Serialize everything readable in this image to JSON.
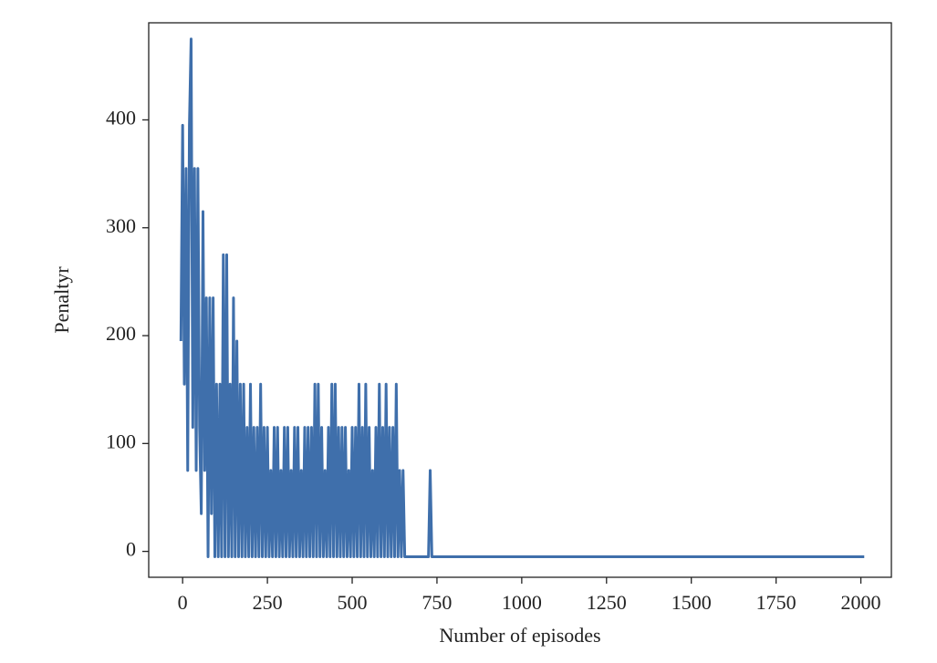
{
  "chart_data": {
    "type": "line",
    "x_label": "Number of episodes",
    "y_label": "Penaltyr",
    "xlim": [
      -100,
      2090
    ],
    "ylim": [
      -24,
      490
    ],
    "xticks": [
      0,
      250,
      500,
      750,
      1000,
      1250,
      1500,
      1750,
      2000
    ],
    "yticks": [
      0,
      100,
      200,
      300,
      400
    ],
    "grid": false,
    "series": [
      {
        "color": "#3f6fab",
        "x": [
          -5,
          0,
          5,
          10,
          15,
          20,
          25,
          30,
          35,
          40,
          45,
          50,
          55,
          60,
          65,
          70,
          75,
          80,
          85,
          90,
          95,
          100,
          105,
          110,
          115,
          120,
          125,
          130,
          135,
          140,
          145,
          150,
          155,
          160,
          165,
          170,
          175,
          180,
          185,
          190,
          195,
          200,
          205,
          210,
          215,
          220,
          225,
          230,
          235,
          240,
          245,
          250,
          255,
          260,
          265,
          270,
          275,
          280,
          285,
          290,
          295,
          300,
          305,
          310,
          315,
          320,
          325,
          330,
          335,
          340,
          345,
          350,
          355,
          360,
          365,
          370,
          375,
          380,
          385,
          390,
          395,
          400,
          405,
          410,
          415,
          420,
          425,
          430,
          435,
          440,
          445,
          450,
          455,
          460,
          465,
          470,
          475,
          480,
          485,
          490,
          495,
          500,
          505,
          510,
          515,
          520,
          525,
          530,
          535,
          540,
          545,
          550,
          555,
          560,
          565,
          570,
          575,
          580,
          585,
          590,
          595,
          600,
          605,
          610,
          615,
          620,
          625,
          630,
          635,
          640,
          645,
          650,
          655,
          725,
          730,
          735,
          2010
        ],
        "values": [
          195,
          395,
          155,
          355,
          75,
          395,
          475,
          115,
          355,
          75,
          355,
          115,
          35,
          315,
          75,
          235,
          -5,
          235,
          35,
          235,
          -5,
          155,
          -5,
          155,
          -5,
          275,
          -5,
          275,
          -5,
          155,
          -5,
          235,
          -5,
          195,
          -5,
          155,
          -5,
          155,
          -5,
          115,
          -5,
          155,
          -5,
          115,
          -5,
          115,
          -5,
          155,
          -5,
          115,
          -5,
          115,
          -5,
          75,
          -5,
          115,
          -5,
          115,
          -5,
          75,
          -5,
          115,
          -5,
          115,
          -5,
          75,
          -5,
          115,
          -5,
          115,
          -5,
          75,
          -5,
          115,
          -5,
          115,
          -5,
          115,
          -5,
          155,
          -5,
          155,
          -5,
          115,
          -5,
          75,
          -5,
          115,
          -5,
          155,
          -5,
          155,
          -5,
          115,
          -5,
          115,
          -5,
          115,
          -5,
          75,
          -5,
          115,
          -5,
          115,
          -5,
          155,
          -5,
          115,
          -5,
          155,
          -5,
          115,
          -5,
          75,
          -5,
          115,
          -5,
          155,
          -5,
          115,
          -5,
          155,
          -5,
          115,
          -5,
          115,
          -5,
          155,
          -5,
          75,
          -5,
          75,
          -5,
          -5,
          75,
          -5,
          -5
        ]
      }
    ]
  }
}
